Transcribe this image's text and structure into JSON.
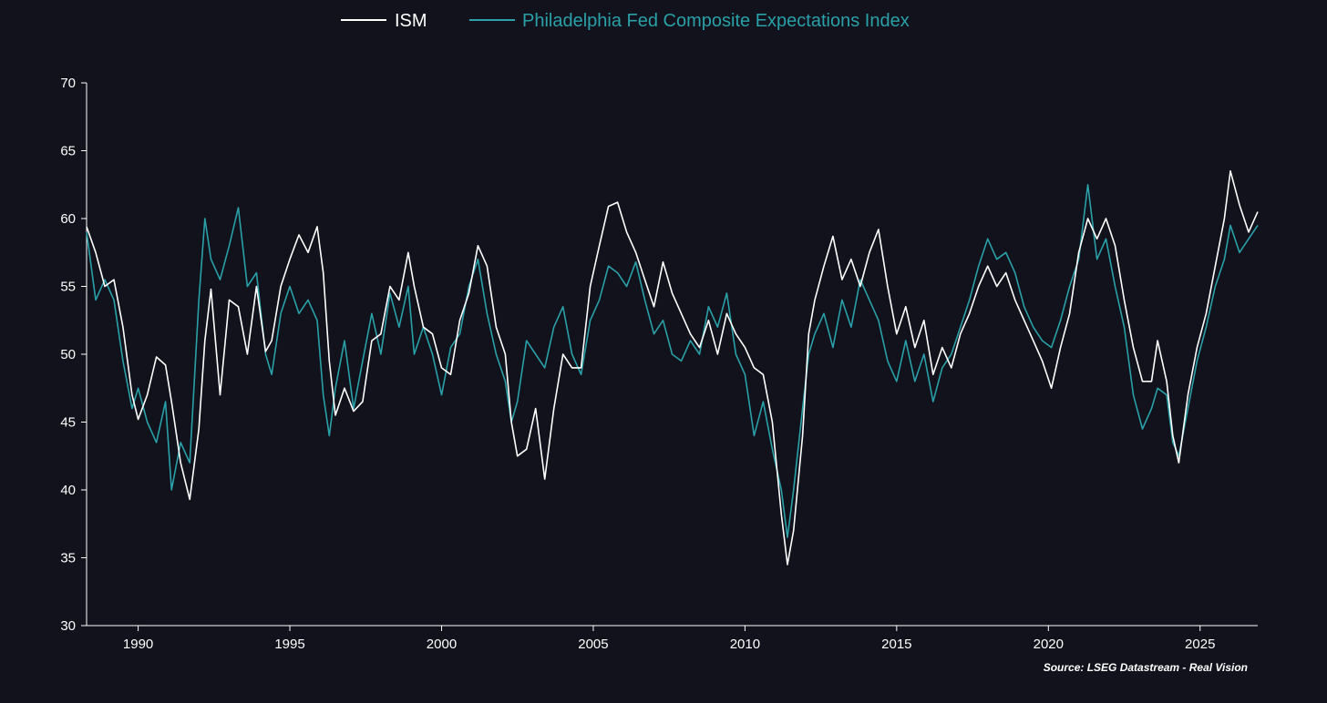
{
  "chart_data": {
    "type": "line",
    "xlabel": "",
    "ylabel": "",
    "xlim": [
      1988.3,
      2026.9
    ],
    "ylim": [
      30,
      70
    ],
    "x_ticks": [
      1990,
      1995,
      2000,
      2005,
      2010,
      2015,
      2020,
      2025
    ],
    "y_ticks": [
      30,
      35,
      40,
      45,
      50,
      55,
      60,
      65,
      70
    ],
    "grid": false,
    "legend_position": "top-center",
    "source": "Source: LSEG Datastream - Real Vision",
    "colors": {
      "background": "#11121c",
      "ism": "#ffffff",
      "philly": "#2aa0a8",
      "axis": "#ffffff"
    },
    "series": [
      {
        "name": "ISM",
        "points": [
          [
            1988.3,
            59.4
          ],
          [
            1988.6,
            57.5
          ],
          [
            1988.9,
            55.0
          ],
          [
            1989.2,
            55.5
          ],
          [
            1989.5,
            52.0
          ],
          [
            1989.8,
            47.0
          ],
          [
            1990.0,
            45.2
          ],
          [
            1990.3,
            47.0
          ],
          [
            1990.6,
            49.8
          ],
          [
            1990.9,
            49.2
          ],
          [
            1991.1,
            46.5
          ],
          [
            1991.4,
            42.0
          ],
          [
            1991.7,
            39.3
          ],
          [
            1992.0,
            44.5
          ],
          [
            1992.2,
            51.0
          ],
          [
            1992.4,
            54.8
          ],
          [
            1992.7,
            47.0
          ],
          [
            1993.0,
            54.0
          ],
          [
            1993.3,
            53.5
          ],
          [
            1993.6,
            50.0
          ],
          [
            1993.9,
            55.0
          ],
          [
            1994.2,
            50.2
          ],
          [
            1994.4,
            51.0
          ],
          [
            1994.7,
            55.0
          ],
          [
            1995.0,
            57.0
          ],
          [
            1995.3,
            58.8
          ],
          [
            1995.6,
            57.5
          ],
          [
            1995.9,
            59.4
          ],
          [
            1996.1,
            56.0
          ],
          [
            1996.3,
            49.5
          ],
          [
            1996.5,
            45.5
          ],
          [
            1996.8,
            47.5
          ],
          [
            1997.1,
            45.8
          ],
          [
            1997.4,
            46.5
          ],
          [
            1997.7,
            51.0
          ],
          [
            1998.0,
            51.5
          ],
          [
            1998.3,
            55.0
          ],
          [
            1998.6,
            54.0
          ],
          [
            1998.9,
            57.5
          ],
          [
            1999.1,
            55.0
          ],
          [
            1999.4,
            52.0
          ],
          [
            1999.7,
            51.5
          ],
          [
            2000.0,
            49.0
          ],
          [
            2000.3,
            48.5
          ],
          [
            2000.6,
            52.5
          ],
          [
            2000.9,
            54.5
          ],
          [
            2001.2,
            58.0
          ],
          [
            2001.5,
            56.5
          ],
          [
            2001.8,
            52.0
          ],
          [
            2002.1,
            50.0
          ],
          [
            2002.3,
            45.0
          ],
          [
            2002.5,
            42.5
          ],
          [
            2002.8,
            43.0
          ],
          [
            2003.1,
            46.0
          ],
          [
            2003.4,
            40.8
          ],
          [
            2003.7,
            46.0
          ],
          [
            2004.0,
            50.0
          ],
          [
            2004.3,
            49.0
          ],
          [
            2004.6,
            49.0
          ],
          [
            2004.9,
            55.0
          ],
          [
            2005.2,
            58.0
          ],
          [
            2005.5,
            60.9
          ],
          [
            2005.8,
            61.2
          ],
          [
            2006.1,
            59.0
          ],
          [
            2006.4,
            57.5
          ],
          [
            2006.7,
            55.5
          ],
          [
            2007.0,
            53.5
          ],
          [
            2007.3,
            56.8
          ],
          [
            2007.6,
            54.5
          ],
          [
            2007.9,
            53.0
          ],
          [
            2008.2,
            51.5
          ],
          [
            2008.5,
            50.5
          ],
          [
            2008.8,
            52.5
          ],
          [
            2009.1,
            50.0
          ],
          [
            2009.4,
            53.0
          ],
          [
            2009.7,
            51.5
          ],
          [
            2010.0,
            50.5
          ],
          [
            2010.3,
            49.0
          ],
          [
            2010.6,
            48.5
          ],
          [
            2010.9,
            45.0
          ],
          [
            2011.2,
            38.2
          ],
          [
            2011.4,
            34.5
          ],
          [
            2011.6,
            37.0
          ],
          [
            2011.9,
            44.0
          ],
          [
            2012.1,
            51.5
          ],
          [
            2012.3,
            54.0
          ],
          [
            2012.6,
            56.5
          ],
          [
            2012.9,
            58.7
          ],
          [
            2013.2,
            55.5
          ],
          [
            2013.5,
            57.0
          ],
          [
            2013.8,
            55.0
          ],
          [
            2014.1,
            57.5
          ],
          [
            2014.4,
            59.2
          ],
          [
            2014.7,
            55.0
          ],
          [
            2015.0,
            51.5
          ],
          [
            2015.3,
            53.5
          ],
          [
            2015.6,
            50.5
          ],
          [
            2015.9,
            52.5
          ],
          [
            2016.2,
            48.5
          ],
          [
            2016.5,
            50.5
          ],
          [
            2016.8,
            49.0
          ],
          [
            2017.1,
            51.5
          ],
          [
            2017.4,
            53.0
          ],
          [
            2017.7,
            55.0
          ],
          [
            2018.0,
            56.5
          ],
          [
            2018.3,
            55.0
          ],
          [
            2018.6,
            56.0
          ],
          [
            2018.9,
            54.0
          ],
          [
            2019.2,
            52.5
          ],
          [
            2019.5,
            51.0
          ],
          [
            2019.8,
            49.5
          ],
          [
            2020.1,
            47.5
          ],
          [
            2020.4,
            50.5
          ],
          [
            2020.7,
            53.0
          ],
          [
            2021.0,
            57.5
          ],
          [
            2021.3,
            60.0
          ],
          [
            2021.6,
            58.5
          ],
          [
            2021.9,
            60.0
          ],
          [
            2022.2,
            58.0
          ],
          [
            2022.5,
            54.0
          ],
          [
            2022.8,
            50.5
          ],
          [
            2023.1,
            48.0
          ],
          [
            2023.4,
            48.0
          ],
          [
            2023.6,
            51.0
          ],
          [
            2023.9,
            48.0
          ],
          [
            2024.1,
            44.0
          ],
          [
            2024.3,
            42.0
          ],
          [
            2024.6,
            47.0
          ],
          [
            2024.9,
            50.5
          ],
          [
            2025.2,
            53.0
          ],
          [
            2025.5,
            56.5
          ],
          [
            2025.8,
            60.0
          ],
          [
            2026.0,
            63.5
          ],
          [
            2026.3,
            61.0
          ],
          [
            2026.6,
            59.0
          ],
          [
            2026.9,
            60.5
          ]
        ]
      },
      {
        "name": "Philadelphia Fed Composite Expectations Index",
        "points": [
          [
            1988.3,
            59.0
          ],
          [
            1988.6,
            54.0
          ],
          [
            1988.9,
            55.5
          ],
          [
            1989.2,
            54.0
          ],
          [
            1989.5,
            49.5
          ],
          [
            1989.8,
            46.0
          ],
          [
            1990.0,
            47.5
          ],
          [
            1990.3,
            45.0
          ],
          [
            1990.6,
            43.5
          ],
          [
            1990.9,
            46.5
          ],
          [
            1991.1,
            40.0
          ],
          [
            1991.4,
            43.5
          ],
          [
            1991.7,
            42.0
          ],
          [
            1992.0,
            54.0
          ],
          [
            1992.2,
            60.0
          ],
          [
            1992.4,
            57.0
          ],
          [
            1992.7,
            55.5
          ],
          [
            1993.0,
            58.0
          ],
          [
            1993.3,
            60.8
          ],
          [
            1993.6,
            55.0
          ],
          [
            1993.9,
            56.0
          ],
          [
            1994.2,
            50.0
          ],
          [
            1994.4,
            48.5
          ],
          [
            1994.7,
            53.0
          ],
          [
            1995.0,
            55.0
          ],
          [
            1995.3,
            53.0
          ],
          [
            1995.6,
            54.0
          ],
          [
            1995.9,
            52.5
          ],
          [
            1996.1,
            47.0
          ],
          [
            1996.3,
            44.0
          ],
          [
            1996.5,
            47.5
          ],
          [
            1996.8,
            51.0
          ],
          [
            1997.1,
            46.0
          ],
          [
            1997.4,
            49.5
          ],
          [
            1997.7,
            53.0
          ],
          [
            1998.0,
            50.0
          ],
          [
            1998.3,
            54.5
          ],
          [
            1998.6,
            52.0
          ],
          [
            1998.9,
            55.0
          ],
          [
            1999.1,
            50.0
          ],
          [
            1999.4,
            52.0
          ],
          [
            1999.7,
            50.0
          ],
          [
            2000.0,
            47.0
          ],
          [
            2000.3,
            50.5
          ],
          [
            2000.6,
            51.5
          ],
          [
            2000.9,
            55.0
          ],
          [
            2001.2,
            57.0
          ],
          [
            2001.5,
            53.0
          ],
          [
            2001.8,
            50.0
          ],
          [
            2002.1,
            48.0
          ],
          [
            2002.3,
            45.0
          ],
          [
            2002.5,
            46.5
          ],
          [
            2002.8,
            51.0
          ],
          [
            2003.1,
            50.0
          ],
          [
            2003.4,
            49.0
          ],
          [
            2003.7,
            52.0
          ],
          [
            2004.0,
            53.5
          ],
          [
            2004.3,
            50.0
          ],
          [
            2004.6,
            48.5
          ],
          [
            2004.9,
            52.5
          ],
          [
            2005.2,
            54.0
          ],
          [
            2005.5,
            56.5
          ],
          [
            2005.8,
            56.0
          ],
          [
            2006.1,
            55.0
          ],
          [
            2006.4,
            56.8
          ],
          [
            2006.7,
            54.0
          ],
          [
            2007.0,
            51.5
          ],
          [
            2007.3,
            52.5
          ],
          [
            2007.6,
            50.0
          ],
          [
            2007.9,
            49.5
          ],
          [
            2008.2,
            51.0
          ],
          [
            2008.5,
            50.0
          ],
          [
            2008.8,
            53.5
          ],
          [
            2009.1,
            52.0
          ],
          [
            2009.4,
            54.5
          ],
          [
            2009.7,
            50.0
          ],
          [
            2010.0,
            48.5
          ],
          [
            2010.3,
            44.0
          ],
          [
            2010.6,
            46.5
          ],
          [
            2010.9,
            43.0
          ],
          [
            2011.2,
            40.0
          ],
          [
            2011.4,
            36.5
          ],
          [
            2011.6,
            40.0
          ],
          [
            2011.9,
            46.0
          ],
          [
            2012.1,
            50.0
          ],
          [
            2012.3,
            51.5
          ],
          [
            2012.6,
            53.0
          ],
          [
            2012.9,
            50.5
          ],
          [
            2013.2,
            54.0
          ],
          [
            2013.5,
            52.0
          ],
          [
            2013.8,
            55.5
          ],
          [
            2014.1,
            54.0
          ],
          [
            2014.4,
            52.5
          ],
          [
            2014.7,
            49.5
          ],
          [
            2015.0,
            48.0
          ],
          [
            2015.3,
            51.0
          ],
          [
            2015.6,
            48.0
          ],
          [
            2015.9,
            50.0
          ],
          [
            2016.2,
            46.5
          ],
          [
            2016.5,
            49.0
          ],
          [
            2016.8,
            50.0
          ],
          [
            2017.1,
            52.0
          ],
          [
            2017.4,
            54.0
          ],
          [
            2017.7,
            56.5
          ],
          [
            2018.0,
            58.5
          ],
          [
            2018.3,
            57.0
          ],
          [
            2018.6,
            57.5
          ],
          [
            2018.9,
            56.0
          ],
          [
            2019.2,
            53.5
          ],
          [
            2019.5,
            52.0
          ],
          [
            2019.8,
            51.0
          ],
          [
            2020.1,
            50.5
          ],
          [
            2020.4,
            52.5
          ],
          [
            2020.7,
            55.0
          ],
          [
            2021.0,
            57.0
          ],
          [
            2021.3,
            62.5
          ],
          [
            2021.6,
            57.0
          ],
          [
            2021.9,
            58.5
          ],
          [
            2022.2,
            55.0
          ],
          [
            2022.5,
            52.0
          ],
          [
            2022.8,
            47.0
          ],
          [
            2023.1,
            44.5
          ],
          [
            2023.4,
            46.0
          ],
          [
            2023.6,
            47.5
          ],
          [
            2023.9,
            47.0
          ],
          [
            2024.1,
            43.5
          ],
          [
            2024.3,
            42.5
          ],
          [
            2024.6,
            46.0
          ],
          [
            2024.9,
            49.5
          ],
          [
            2025.2,
            52.0
          ],
          [
            2025.5,
            55.0
          ],
          [
            2025.8,
            57.0
          ],
          [
            2026.0,
            59.5
          ],
          [
            2026.3,
            57.5
          ],
          [
            2026.6,
            58.5
          ],
          [
            2026.9,
            59.5
          ]
        ]
      }
    ]
  }
}
